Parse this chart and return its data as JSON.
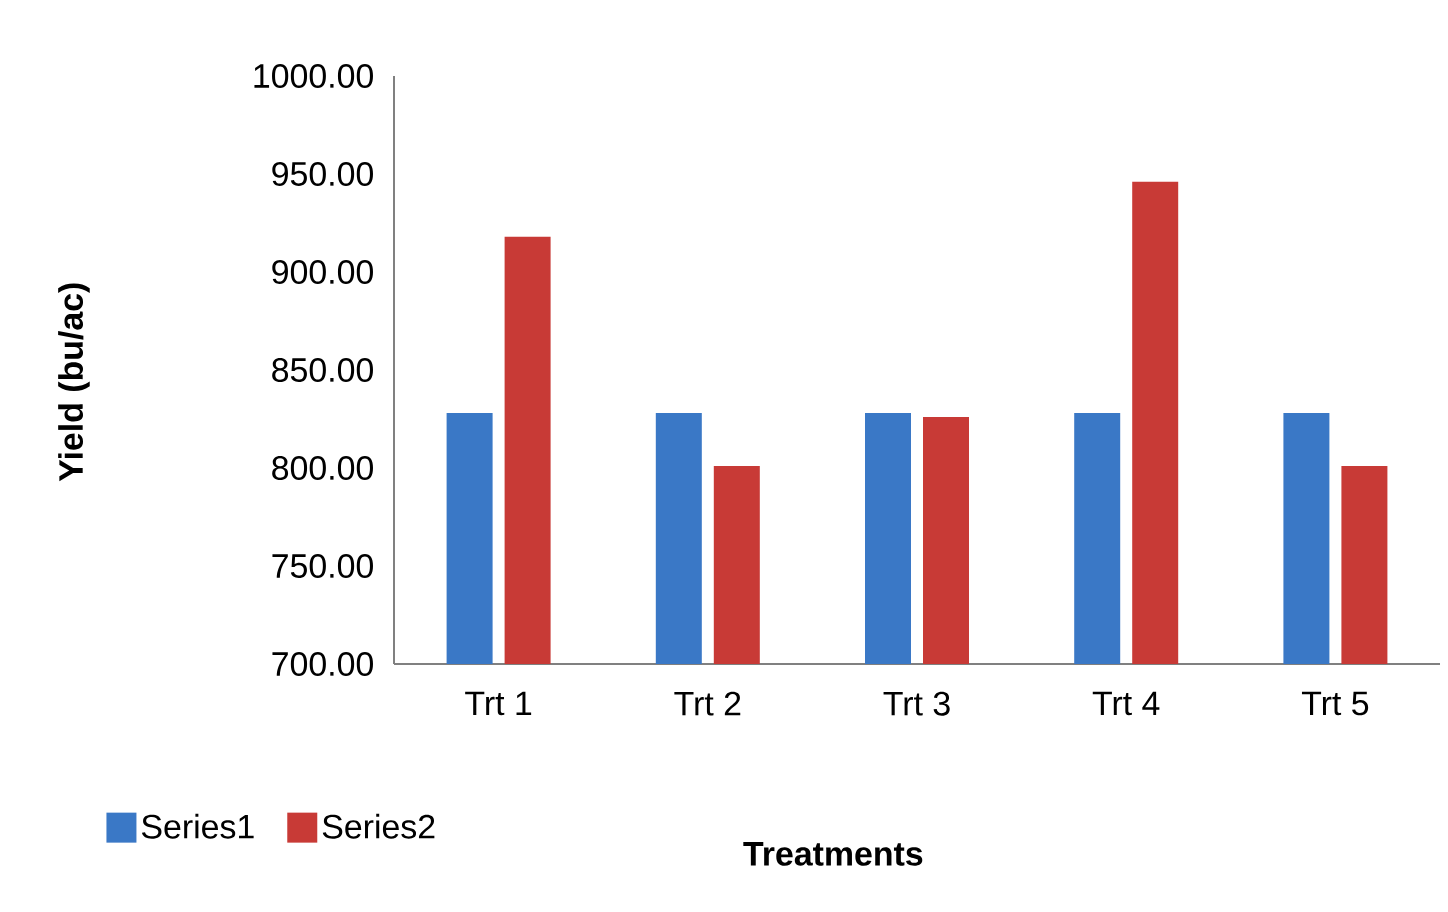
{
  "chart_data": {
    "type": "bar",
    "xlabel": "Treatments",
    "ylabel": "Yield (bu/ac)",
    "categories": [
      "Trt 1",
      "Trt 2",
      "Trt 3",
      "Trt 4",
      "Trt 5"
    ],
    "series": [
      {
        "name": "Series1",
        "color": "#3a78c6",
        "values": [
          828,
          828,
          828,
          828,
          828
        ]
      },
      {
        "name": "Series2",
        "color": "#c83a36",
        "values": [
          918,
          801,
          826,
          946,
          801
        ]
      }
    ],
    "ylim": [
      700,
      1000
    ],
    "yticks": [
      {
        "value": 700,
        "label": "700.00"
      },
      {
        "value": 750,
        "label": "750.00"
      },
      {
        "value": 800,
        "label": "800.00"
      },
      {
        "value": 850,
        "label": "850.00"
      },
      {
        "value": 900,
        "label": "900.00"
      },
      {
        "value": 950,
        "label": "950.00"
      },
      {
        "value": 1000,
        "label": "1000.00"
      }
    ],
    "grid": false,
    "legend": "bottom left"
  }
}
